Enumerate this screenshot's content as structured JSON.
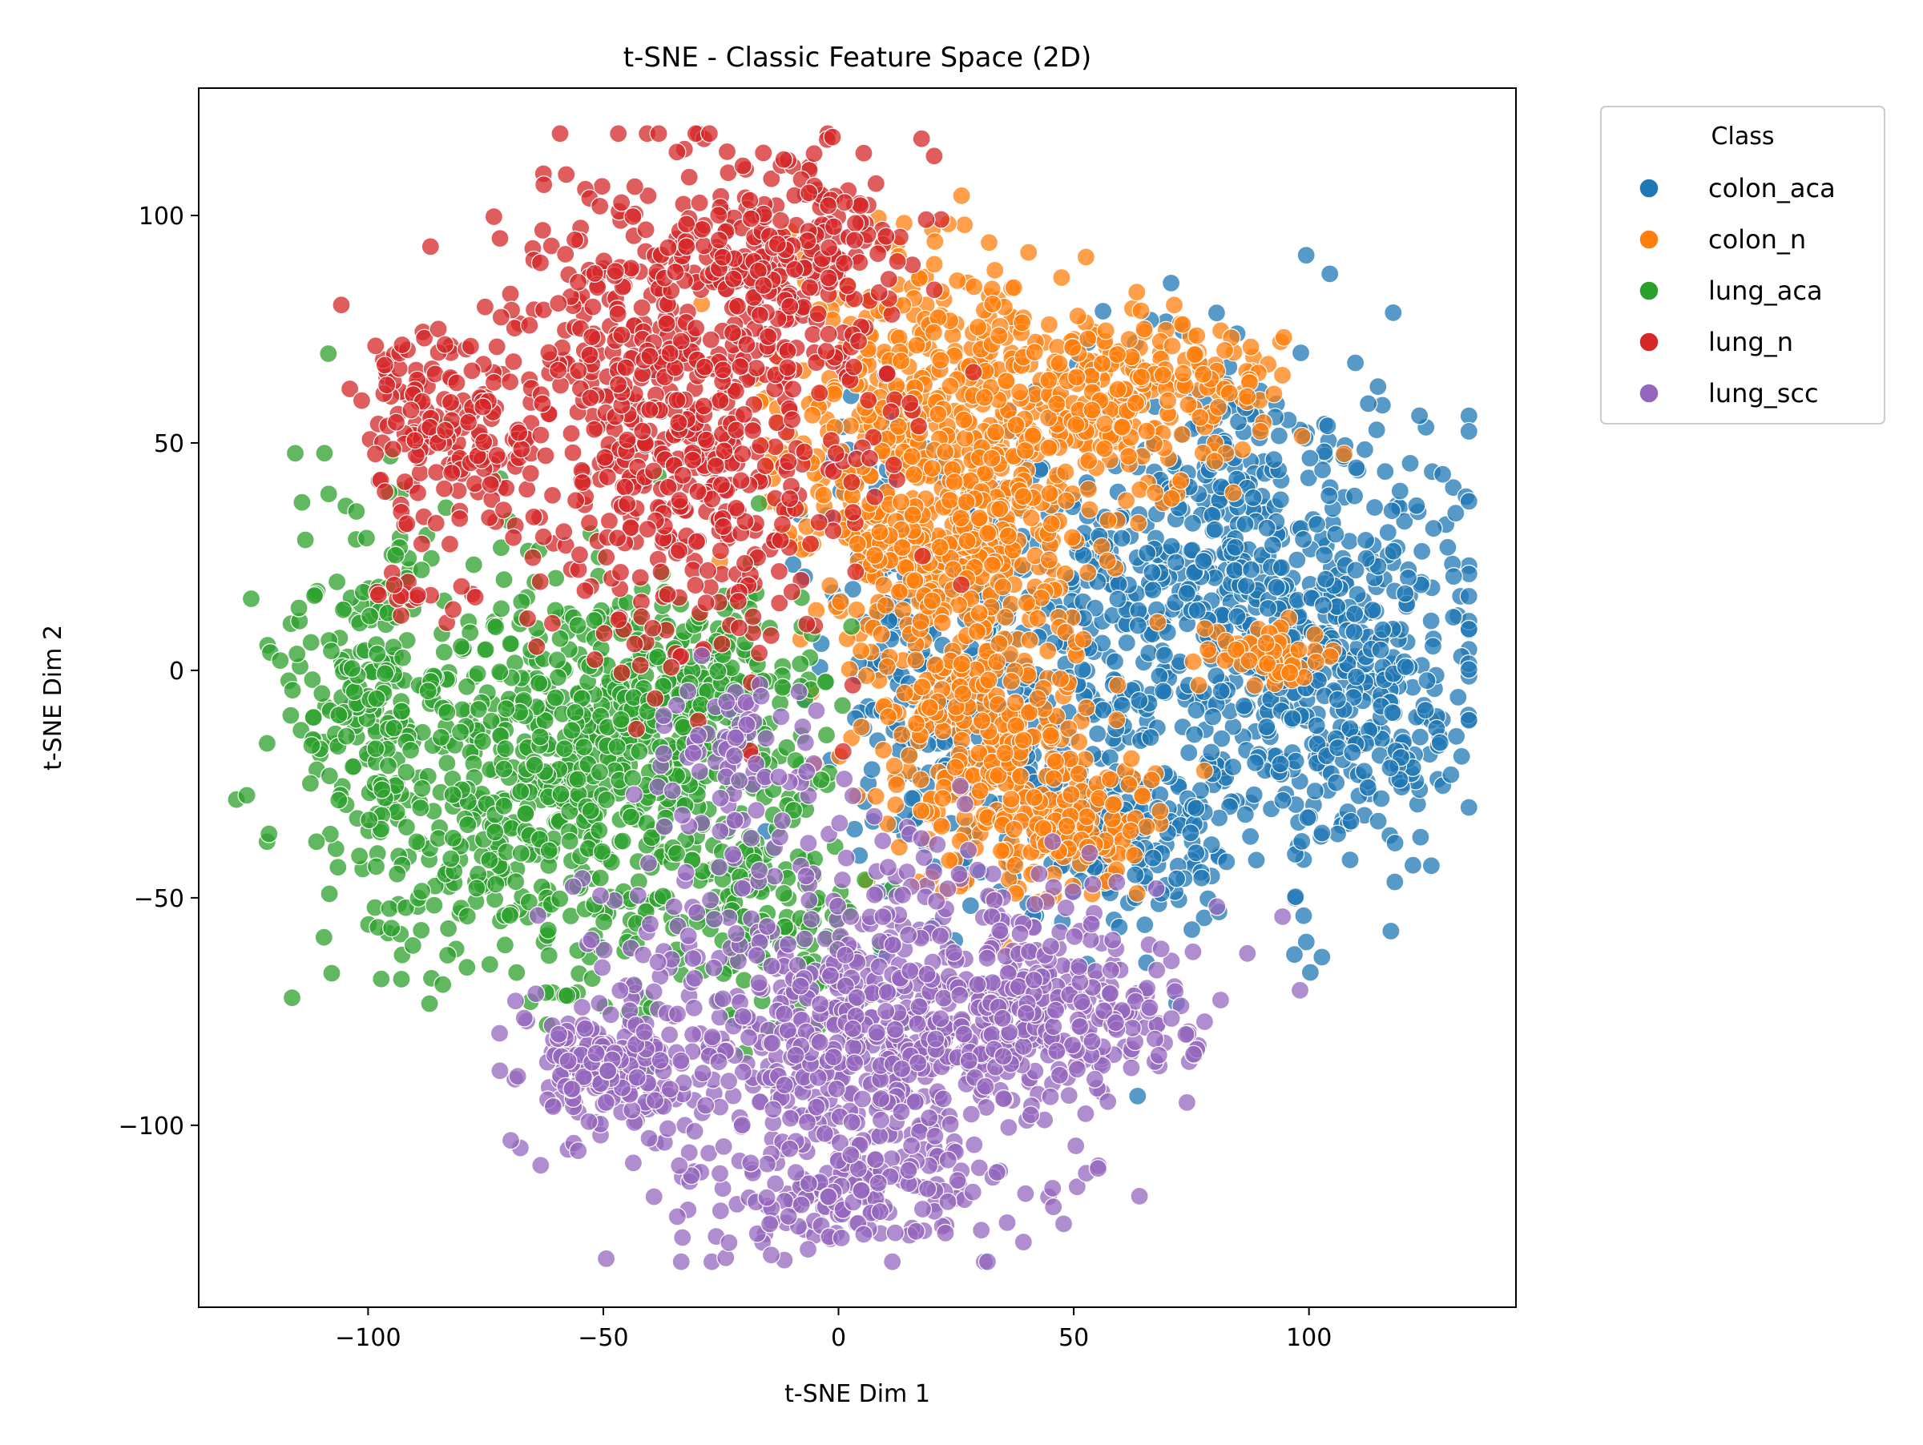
{
  "chart_data": {
    "type": "scatter",
    "title": "t-SNE - Classic Feature Space (2D)",
    "xlabel": "t-SNE Dim 1",
    "ylabel": "t-SNE Dim 2",
    "xlim": [
      -136,
      144
    ],
    "ylim": [
      -140,
      128
    ],
    "xticks": [
      -100,
      -50,
      0,
      50,
      100
    ],
    "yticks": [
      -100,
      -50,
      0,
      50,
      100
    ],
    "xtick_labels": [
      "−100",
      "−50",
      "0",
      "50",
      "100"
    ],
    "ytick_labels": [
      "−100",
      "−50",
      "0",
      "50",
      "100"
    ],
    "grid": false,
    "legend": {
      "title": "Class",
      "placement": "outside-top-right"
    },
    "series": [
      {
        "name": "colon_aca",
        "color": "#1f77b4",
        "clusters": [
          {
            "cx": 82,
            "cy": 15,
            "sx": 24,
            "sy": 26,
            "n": 700
          },
          {
            "cx": 110,
            "cy": -5,
            "sx": 12,
            "sy": 18,
            "n": 240
          },
          {
            "cx": 32,
            "cy": -10,
            "sx": 16,
            "sy": 20,
            "n": 220
          },
          {
            "cx": 62,
            "cy": -35,
            "sx": 16,
            "sy": 9,
            "n": 160
          },
          {
            "cx": 10,
            "cy": 20,
            "sx": 8,
            "sy": 18,
            "n": 80
          }
        ]
      },
      {
        "name": "colon_n",
        "color": "#ff7f0e",
        "clusters": [
          {
            "cx": 20,
            "cy": 58,
            "sx": 18,
            "sy": 16,
            "n": 380
          },
          {
            "cx": 60,
            "cy": 62,
            "sx": 16,
            "sy": 9,
            "n": 260
          },
          {
            "cx": 22,
            "cy": 28,
            "sx": 16,
            "sy": 11,
            "n": 320
          },
          {
            "cx": 30,
            "cy": -15,
            "sx": 12,
            "sy": 16,
            "n": 300
          },
          {
            "cx": 52,
            "cy": -33,
            "sx": 9,
            "sy": 8,
            "n": 120
          },
          {
            "cx": 92,
            "cy": 3,
            "sx": 7,
            "sy": 4,
            "n": 60
          }
        ]
      },
      {
        "name": "lung_aca",
        "color": "#2ca02c",
        "clusters": [
          {
            "cx": -62,
            "cy": -25,
            "sx": 20,
            "sy": 22,
            "n": 620
          },
          {
            "cx": -100,
            "cy": -5,
            "sx": 10,
            "sy": 22,
            "n": 200
          },
          {
            "cx": -32,
            "cy": -5,
            "sx": 14,
            "sy": 11,
            "n": 240
          },
          {
            "cx": -18,
            "cy": -50,
            "sx": 14,
            "sy": 12,
            "n": 160
          }
        ]
      },
      {
        "name": "lung_n",
        "color": "#d62728",
        "clusters": [
          {
            "cx": -35,
            "cy": 55,
            "sx": 20,
            "sy": 28,
            "n": 700
          },
          {
            "cx": -10,
            "cy": 90,
            "sx": 12,
            "sy": 12,
            "n": 200
          },
          {
            "cx": -85,
            "cy": 55,
            "sx": 8,
            "sy": 12,
            "n": 140
          },
          {
            "cx": -90,
            "cy": 18,
            "sx": 5,
            "sy": 3,
            "n": 15
          }
        ]
      },
      {
        "name": "lung_scc",
        "color": "#9467bd",
        "clusters": [
          {
            "cx": 5,
            "cy": -78,
            "sx": 26,
            "sy": 20,
            "n": 780
          },
          {
            "cx": 45,
            "cy": -75,
            "sx": 16,
            "sy": 10,
            "n": 220
          },
          {
            "cx": -50,
            "cy": -88,
            "sx": 10,
            "sy": 8,
            "n": 150
          },
          {
            "cx": 0,
            "cy": -115,
            "sx": 14,
            "sy": 6,
            "n": 120
          },
          {
            "cx": -20,
            "cy": -20,
            "sx": 10,
            "sy": 10,
            "n": 80
          }
        ]
      }
    ]
  }
}
